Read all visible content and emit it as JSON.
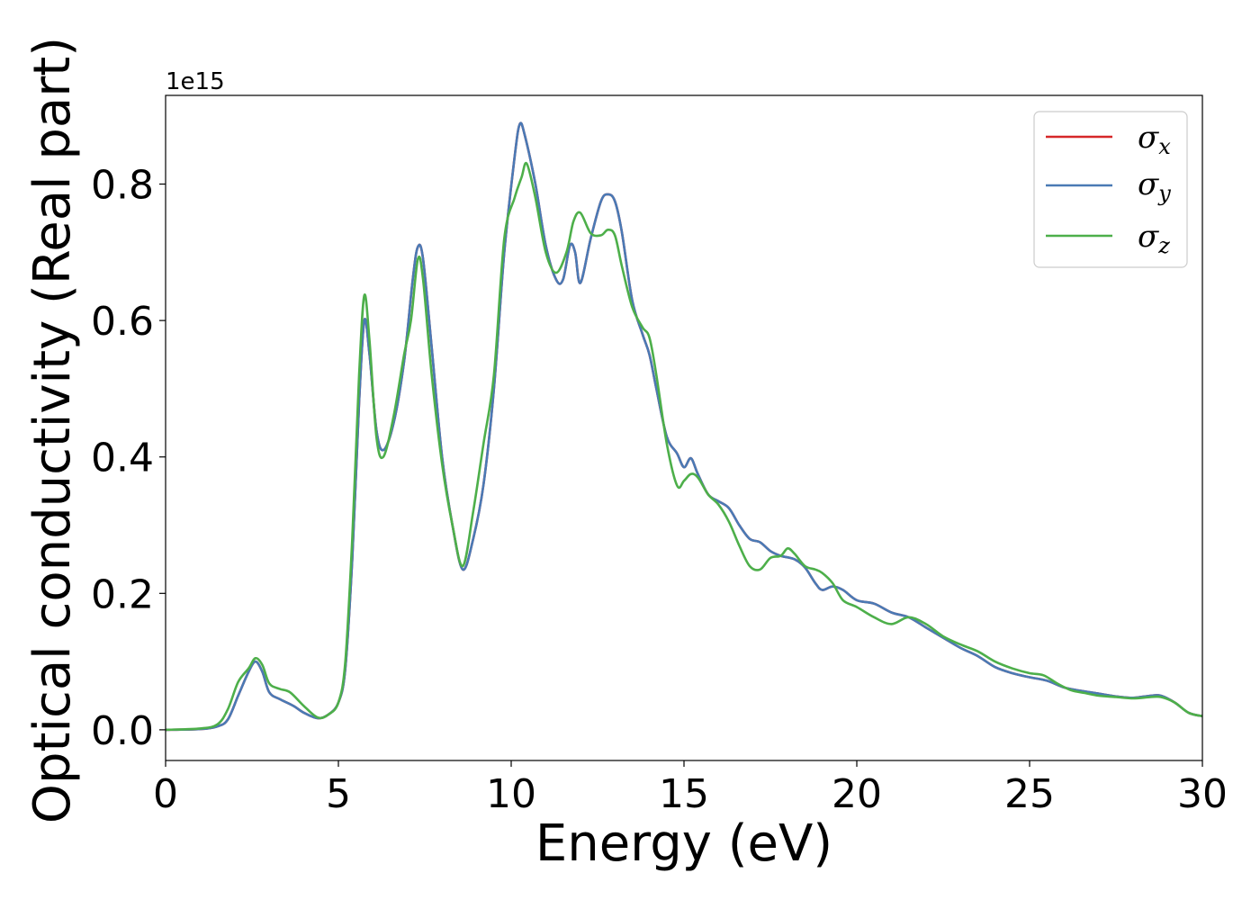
{
  "chart_data": {
    "type": "line",
    "xlabel": "Energy (eV)",
    "ylabel": "Optical conductivity (Real part)",
    "y_offset_label": "1e15",
    "xlim": [
      0,
      30
    ],
    "ylim": [
      -0.045,
      0.93
    ],
    "x_ticks": [
      "0",
      "5",
      "10",
      "15",
      "20",
      "25",
      "30"
    ],
    "y_ticks": [
      "0.0",
      "0.2",
      "0.4",
      "0.6",
      "0.8"
    ],
    "x_tick_values": [
      0,
      5,
      10,
      15,
      20,
      25,
      30
    ],
    "y_tick_values": [
      0.0,
      0.2,
      0.4,
      0.6,
      0.8
    ],
    "grid": false,
    "legend_position": "top-right",
    "series": [
      {
        "name": "x",
        "legend_symbol": "σ",
        "color": "#d62728",
        "points": [
          [
            0,
            0
          ],
          [
            1,
            0.001
          ],
          [
            1.5,
            0.005
          ],
          [
            1.8,
            0.015
          ],
          [
            2.1,
            0.05
          ],
          [
            2.4,
            0.085
          ],
          [
            2.6,
            0.1
          ],
          [
            2.8,
            0.085
          ],
          [
            3.0,
            0.055
          ],
          [
            3.3,
            0.045
          ],
          [
            3.7,
            0.035
          ],
          [
            4.0,
            0.025
          ],
          [
            4.4,
            0.017
          ],
          [
            4.7,
            0.022
          ],
          [
            5.0,
            0.04
          ],
          [
            5.2,
            0.09
          ],
          [
            5.4,
            0.25
          ],
          [
            5.6,
            0.48
          ],
          [
            5.75,
            0.6
          ],
          [
            5.9,
            0.55
          ],
          [
            6.1,
            0.44
          ],
          [
            6.3,
            0.41
          ],
          [
            6.6,
            0.45
          ],
          [
            6.9,
            0.54
          ],
          [
            7.15,
            0.66
          ],
          [
            7.3,
            0.708
          ],
          [
            7.45,
            0.69
          ],
          [
            7.7,
            0.56
          ],
          [
            8.0,
            0.4
          ],
          [
            8.3,
            0.3
          ],
          [
            8.6,
            0.235
          ],
          [
            8.9,
            0.28
          ],
          [
            9.2,
            0.36
          ],
          [
            9.5,
            0.5
          ],
          [
            9.8,
            0.7
          ],
          [
            10.1,
            0.84
          ],
          [
            10.25,
            0.888
          ],
          [
            10.4,
            0.87
          ],
          [
            10.7,
            0.8
          ],
          [
            11.0,
            0.71
          ],
          [
            11.3,
            0.66
          ],
          [
            11.5,
            0.66
          ],
          [
            11.7,
            0.71
          ],
          [
            11.85,
            0.7
          ],
          [
            12.0,
            0.655
          ],
          [
            12.3,
            0.72
          ],
          [
            12.6,
            0.775
          ],
          [
            12.8,
            0.785
          ],
          [
            13.0,
            0.775
          ],
          [
            13.2,
            0.73
          ],
          [
            13.5,
            0.63
          ],
          [
            13.8,
            0.58
          ],
          [
            14.0,
            0.55
          ],
          [
            14.2,
            0.5
          ],
          [
            14.5,
            0.43
          ],
          [
            14.8,
            0.405
          ],
          [
            15.0,
            0.385
          ],
          [
            15.2,
            0.398
          ],
          [
            15.4,
            0.375
          ],
          [
            15.7,
            0.345
          ],
          [
            16.0,
            0.335
          ],
          [
            16.3,
            0.325
          ],
          [
            16.6,
            0.3
          ],
          [
            16.9,
            0.28
          ],
          [
            17.2,
            0.275
          ],
          [
            17.5,
            0.262
          ],
          [
            17.8,
            0.255
          ],
          [
            18.2,
            0.25
          ],
          [
            18.5,
            0.238
          ],
          [
            18.8,
            0.215
          ],
          [
            19.0,
            0.205
          ],
          [
            19.3,
            0.21
          ],
          [
            19.6,
            0.205
          ],
          [
            20.0,
            0.19
          ],
          [
            20.5,
            0.185
          ],
          [
            21.0,
            0.172
          ],
          [
            21.5,
            0.165
          ],
          [
            22.0,
            0.15
          ],
          [
            22.5,
            0.135
          ],
          [
            23.0,
            0.12
          ],
          [
            23.5,
            0.108
          ],
          [
            24.0,
            0.092
          ],
          [
            24.5,
            0.083
          ],
          [
            25.0,
            0.077
          ],
          [
            25.5,
            0.072
          ],
          [
            26.0,
            0.062
          ],
          [
            26.5,
            0.057
          ],
          [
            27.0,
            0.053
          ],
          [
            27.5,
            0.049
          ],
          [
            28.0,
            0.047
          ],
          [
            28.5,
            0.05
          ],
          [
            28.8,
            0.05
          ],
          [
            29.2,
            0.04
          ],
          [
            29.6,
            0.025
          ],
          [
            30.0,
            0.02
          ]
        ]
      },
      {
        "name": "y",
        "legend_symbol": "σ",
        "color": "#4a7ab5",
        "points": [
          [
            0,
            0
          ],
          [
            1,
            0.001
          ],
          [
            1.5,
            0.005
          ],
          [
            1.8,
            0.015
          ],
          [
            2.1,
            0.05
          ],
          [
            2.4,
            0.085
          ],
          [
            2.6,
            0.1
          ],
          [
            2.8,
            0.085
          ],
          [
            3.0,
            0.055
          ],
          [
            3.3,
            0.045
          ],
          [
            3.7,
            0.035
          ],
          [
            4.0,
            0.025
          ],
          [
            4.4,
            0.017
          ],
          [
            4.7,
            0.022
          ],
          [
            5.0,
            0.04
          ],
          [
            5.2,
            0.09
          ],
          [
            5.4,
            0.25
          ],
          [
            5.6,
            0.48
          ],
          [
            5.75,
            0.6
          ],
          [
            5.9,
            0.55
          ],
          [
            6.1,
            0.44
          ],
          [
            6.3,
            0.41
          ],
          [
            6.6,
            0.45
          ],
          [
            6.9,
            0.54
          ],
          [
            7.15,
            0.66
          ],
          [
            7.3,
            0.708
          ],
          [
            7.45,
            0.69
          ],
          [
            7.7,
            0.56
          ],
          [
            8.0,
            0.4
          ],
          [
            8.3,
            0.3
          ],
          [
            8.6,
            0.235
          ],
          [
            8.9,
            0.28
          ],
          [
            9.2,
            0.36
          ],
          [
            9.5,
            0.5
          ],
          [
            9.8,
            0.7
          ],
          [
            10.1,
            0.84
          ],
          [
            10.25,
            0.888
          ],
          [
            10.4,
            0.87
          ],
          [
            10.7,
            0.8
          ],
          [
            11.0,
            0.71
          ],
          [
            11.3,
            0.66
          ],
          [
            11.5,
            0.66
          ],
          [
            11.7,
            0.71
          ],
          [
            11.85,
            0.7
          ],
          [
            12.0,
            0.655
          ],
          [
            12.3,
            0.72
          ],
          [
            12.6,
            0.775
          ],
          [
            12.8,
            0.785
          ],
          [
            13.0,
            0.775
          ],
          [
            13.2,
            0.73
          ],
          [
            13.5,
            0.63
          ],
          [
            13.8,
            0.58
          ],
          [
            14.0,
            0.55
          ],
          [
            14.2,
            0.5
          ],
          [
            14.5,
            0.43
          ],
          [
            14.8,
            0.405
          ],
          [
            15.0,
            0.385
          ],
          [
            15.2,
            0.398
          ],
          [
            15.4,
            0.375
          ],
          [
            15.7,
            0.345
          ],
          [
            16.0,
            0.335
          ],
          [
            16.3,
            0.325
          ],
          [
            16.6,
            0.3
          ],
          [
            16.9,
            0.28
          ],
          [
            17.2,
            0.275
          ],
          [
            17.5,
            0.262
          ],
          [
            17.8,
            0.255
          ],
          [
            18.2,
            0.25
          ],
          [
            18.5,
            0.238
          ],
          [
            18.8,
            0.215
          ],
          [
            19.0,
            0.205
          ],
          [
            19.3,
            0.21
          ],
          [
            19.6,
            0.205
          ],
          [
            20.0,
            0.19
          ],
          [
            20.5,
            0.185
          ],
          [
            21.0,
            0.172
          ],
          [
            21.5,
            0.165
          ],
          [
            22.0,
            0.15
          ],
          [
            22.5,
            0.135
          ],
          [
            23.0,
            0.12
          ],
          [
            23.5,
            0.108
          ],
          [
            24.0,
            0.092
          ],
          [
            24.5,
            0.083
          ],
          [
            25.0,
            0.077
          ],
          [
            25.5,
            0.072
          ],
          [
            26.0,
            0.062
          ],
          [
            26.5,
            0.057
          ],
          [
            27.0,
            0.053
          ],
          [
            27.5,
            0.049
          ],
          [
            28.0,
            0.047
          ],
          [
            28.5,
            0.05
          ],
          [
            28.8,
            0.05
          ],
          [
            29.2,
            0.04
          ],
          [
            29.6,
            0.025
          ],
          [
            30.0,
            0.02
          ]
        ]
      },
      {
        "name": "z",
        "legend_symbol": "σ",
        "color": "#4daf4a",
        "points": [
          [
            0,
            0
          ],
          [
            1,
            0.002
          ],
          [
            1.5,
            0.008
          ],
          [
            1.8,
            0.03
          ],
          [
            2.1,
            0.07
          ],
          [
            2.4,
            0.09
          ],
          [
            2.6,
            0.105
          ],
          [
            2.8,
            0.095
          ],
          [
            3.0,
            0.068
          ],
          [
            3.3,
            0.06
          ],
          [
            3.6,
            0.055
          ],
          [
            4.0,
            0.035
          ],
          [
            4.4,
            0.018
          ],
          [
            4.7,
            0.022
          ],
          [
            5.0,
            0.04
          ],
          [
            5.2,
            0.1
          ],
          [
            5.4,
            0.28
          ],
          [
            5.6,
            0.52
          ],
          [
            5.75,
            0.637
          ],
          [
            5.9,
            0.57
          ],
          [
            6.1,
            0.43
          ],
          [
            6.3,
            0.4
          ],
          [
            6.6,
            0.46
          ],
          [
            6.9,
            0.55
          ],
          [
            7.1,
            0.6
          ],
          [
            7.3,
            0.69
          ],
          [
            7.45,
            0.66
          ],
          [
            7.7,
            0.52
          ],
          [
            8.0,
            0.39
          ],
          [
            8.3,
            0.3
          ],
          [
            8.6,
            0.24
          ],
          [
            8.9,
            0.32
          ],
          [
            9.2,
            0.42
          ],
          [
            9.5,
            0.52
          ],
          [
            9.8,
            0.72
          ],
          [
            10.1,
            0.78
          ],
          [
            10.3,
            0.81
          ],
          [
            10.45,
            0.83
          ],
          [
            10.7,
            0.78
          ],
          [
            11.0,
            0.7
          ],
          [
            11.3,
            0.67
          ],
          [
            11.6,
            0.7
          ],
          [
            11.8,
            0.745
          ],
          [
            12.0,
            0.758
          ],
          [
            12.3,
            0.728
          ],
          [
            12.6,
            0.725
          ],
          [
            12.8,
            0.733
          ],
          [
            13.0,
            0.725
          ],
          [
            13.2,
            0.68
          ],
          [
            13.5,
            0.62
          ],
          [
            13.8,
            0.59
          ],
          [
            14.0,
            0.575
          ],
          [
            14.2,
            0.52
          ],
          [
            14.5,
            0.42
          ],
          [
            14.8,
            0.358
          ],
          [
            15.0,
            0.365
          ],
          [
            15.2,
            0.375
          ],
          [
            15.4,
            0.37
          ],
          [
            15.7,
            0.345
          ],
          [
            16.0,
            0.33
          ],
          [
            16.3,
            0.305
          ],
          [
            16.6,
            0.27
          ],
          [
            16.9,
            0.24
          ],
          [
            17.2,
            0.235
          ],
          [
            17.5,
            0.252
          ],
          [
            17.8,
            0.255
          ],
          [
            18.0,
            0.266
          ],
          [
            18.2,
            0.258
          ],
          [
            18.5,
            0.24
          ],
          [
            18.8,
            0.235
          ],
          [
            19.0,
            0.23
          ],
          [
            19.3,
            0.215
          ],
          [
            19.6,
            0.19
          ],
          [
            20.0,
            0.18
          ],
          [
            20.5,
            0.165
          ],
          [
            21.0,
            0.155
          ],
          [
            21.5,
            0.165
          ],
          [
            22.0,
            0.155
          ],
          [
            22.5,
            0.137
          ],
          [
            23.0,
            0.125
          ],
          [
            23.5,
            0.115
          ],
          [
            24.0,
            0.1
          ],
          [
            24.5,
            0.09
          ],
          [
            25.0,
            0.083
          ],
          [
            25.4,
            0.08
          ],
          [
            25.8,
            0.068
          ],
          [
            26.2,
            0.058
          ],
          [
            26.6,
            0.054
          ],
          [
            27.0,
            0.05
          ],
          [
            27.5,
            0.048
          ],
          [
            28.0,
            0.046
          ],
          [
            28.5,
            0.048
          ],
          [
            28.8,
            0.048
          ],
          [
            29.2,
            0.04
          ],
          [
            29.6,
            0.025
          ],
          [
            30.0,
            0.02
          ]
        ]
      }
    ]
  }
}
